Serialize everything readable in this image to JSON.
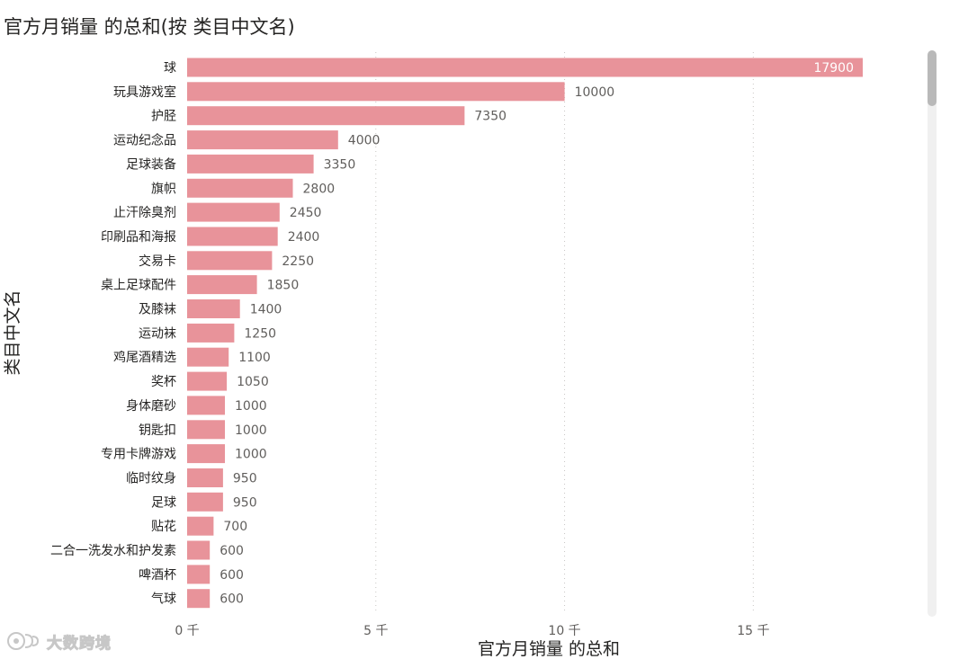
{
  "chart_data": {
    "type": "bar",
    "orientation": "horizontal",
    "title": "官方月销量 的总和(按 类目中文名)",
    "xlabel": "官方月销量 的总和",
    "ylabel": "类目中文名",
    "xlim": [
      0,
      17900
    ],
    "xticks": [
      0,
      5000,
      10000,
      15000
    ],
    "xtick_labels": [
      "0 千",
      "5 千",
      "10 千",
      "15 千"
    ],
    "grid": true,
    "color": "#E8939A",
    "categories": [
      "球",
      "玩具游戏室",
      "护胫",
      "运动纪念品",
      "足球装备",
      "旗帜",
      "止汗除臭剂",
      "印刷品和海报",
      "交易卡",
      "桌上足球配件",
      "及膝袜",
      "运动袜",
      "鸡尾酒精选",
      "奖杯",
      "身体磨砂",
      "钥匙扣",
      "专用卡牌游戏",
      "临时纹身",
      "足球",
      "贴花",
      "二合一洗发水和护发素",
      "啤酒杯",
      "气球"
    ],
    "values": [
      17900,
      10000,
      7350,
      4000,
      3350,
      2800,
      2450,
      2400,
      2250,
      1850,
      1400,
      1250,
      1100,
      1050,
      1000,
      1000,
      1000,
      950,
      950,
      700,
      600,
      600,
      600
    ]
  },
  "watermark": {
    "text": "大数跨境"
  }
}
